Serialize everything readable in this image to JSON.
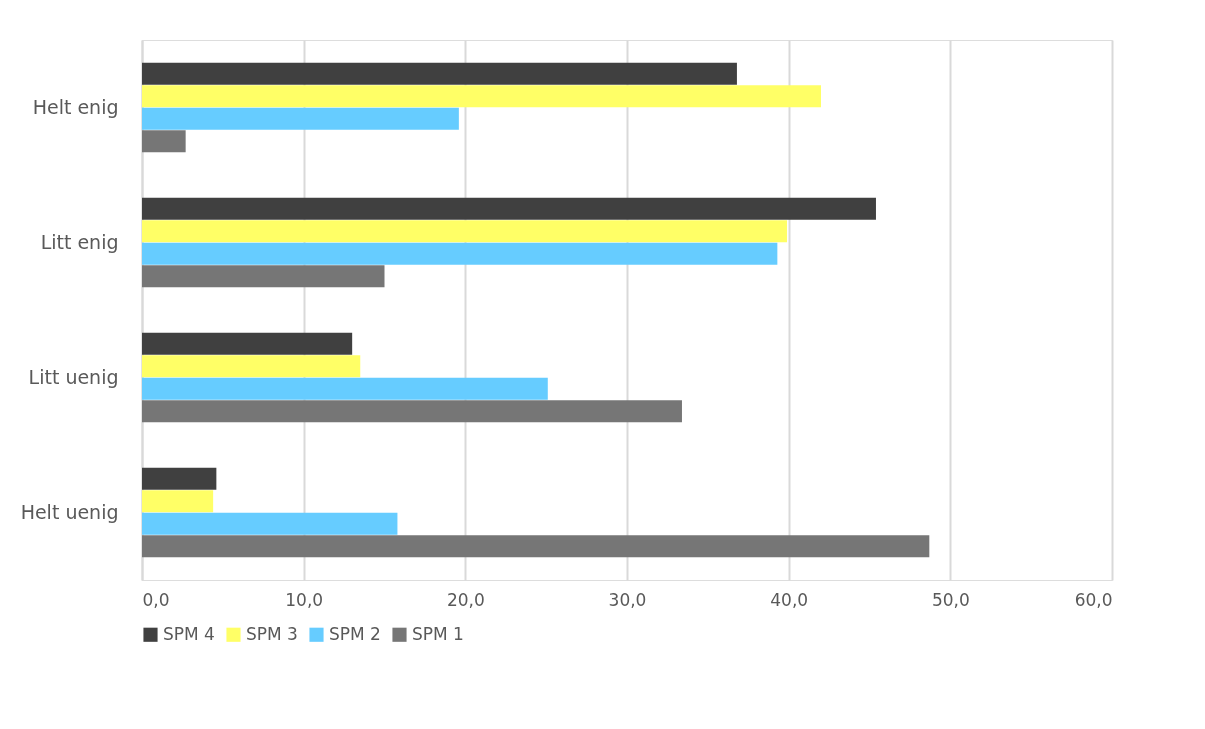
{
  "chart_data": {
    "type": "bar",
    "orientation": "horizontal",
    "categories": [
      "Helt enig",
      "Litt enig",
      "Litt uenig",
      "Helt uenig"
    ],
    "series": [
      {
        "name": "SPM 4",
        "color": "#404040",
        "values": [
          36.8,
          45.4,
          13.0,
          4.6
        ]
      },
      {
        "name": "SPM 3",
        "color": "#ffff66",
        "values": [
          42.0,
          39.9,
          13.5,
          4.4
        ]
      },
      {
        "name": "SPM 2",
        "color": "#66ccff",
        "values": [
          19.6,
          39.3,
          25.1,
          15.8
        ]
      },
      {
        "name": "SPM 1",
        "color": "#767676",
        "values": [
          2.7,
          15.0,
          33.4,
          48.7
        ]
      }
    ],
    "xlim": [
      0,
      60
    ],
    "xticks": [
      {
        "value": 0,
        "label": "0,0"
      },
      {
        "value": 10,
        "label": "10,0"
      },
      {
        "value": 20,
        "label": "20,0"
      },
      {
        "value": 30,
        "label": "30,0"
      },
      {
        "value": 40,
        "label": "40,0"
      },
      {
        "value": 50,
        "label": "50,0"
      },
      {
        "value": 60,
        "label": "60,0"
      }
    ],
    "grid": "x",
    "legend": "bottom"
  }
}
